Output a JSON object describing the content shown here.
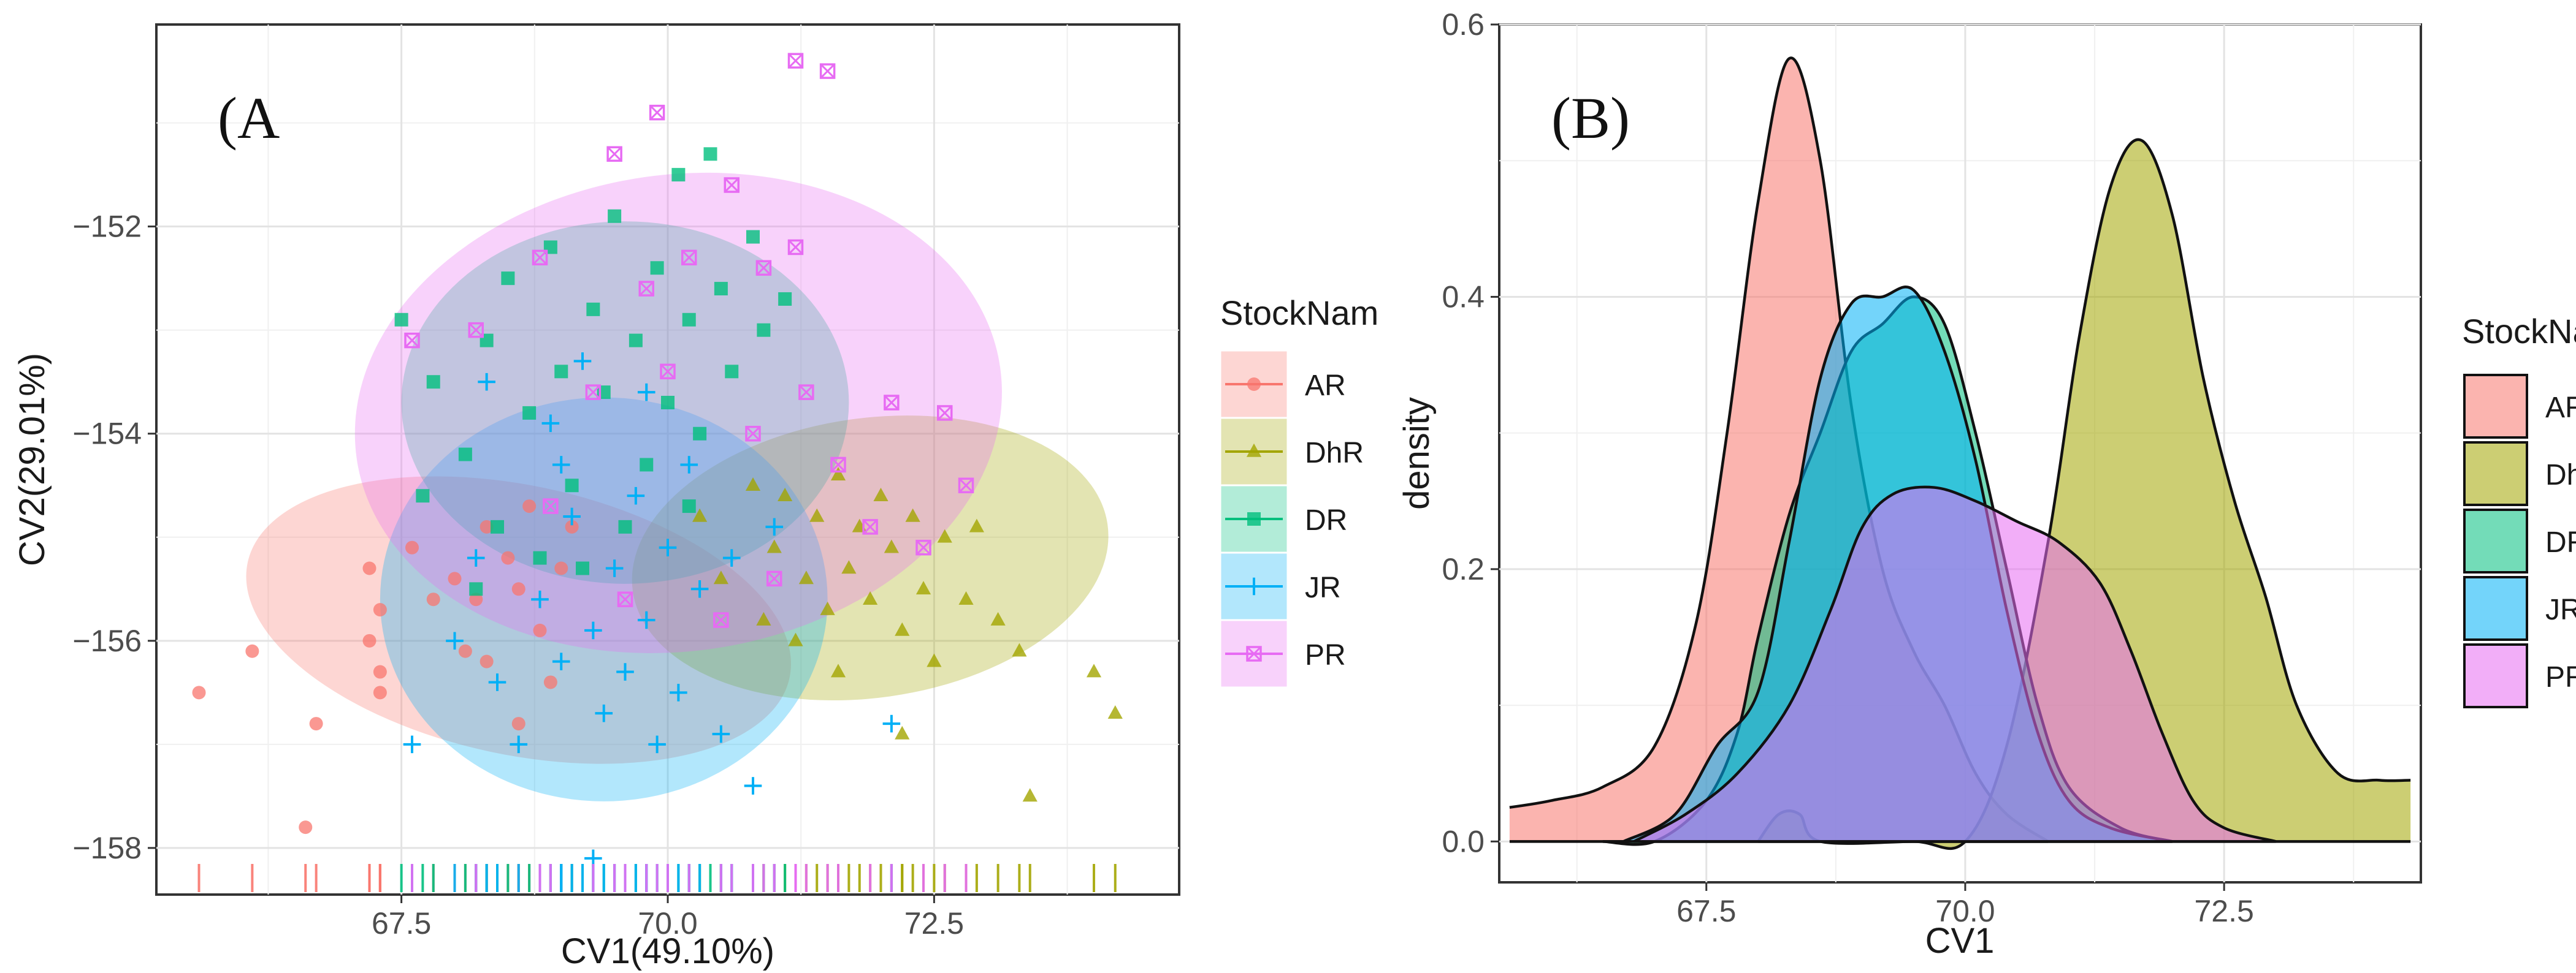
{
  "chart_data": [
    {
      "type": "scatter",
      "panel_label": "(A",
      "xlabel": "CV1(49.10%)",
      "ylabel": "CV2(29.01%)",
      "xlim": [
        65.2,
        74.8
      ],
      "ylim": [
        -158.45,
        -150.05
      ],
      "xticks": [
        67.5,
        70.0,
        72.5
      ],
      "xtick_labels": [
        "67.5",
        "70.0",
        "72.5"
      ],
      "yticks": [
        -158,
        -156,
        -154,
        -152
      ],
      "ytick_labels": [
        "−158",
        "−156",
        "−154",
        "−152"
      ],
      "grid": true,
      "legend_title": "StockNam",
      "legend_position": "right",
      "series": [
        {
          "name": "AR",
          "color": "#F8766D",
          "marker": "circle",
          "ellipse": {
            "cx": 68.6,
            "cy": -155.8,
            "rx": 2.6,
            "ry": 1.3,
            "angle": 12
          },
          "points": [
            [
              65.6,
              -156.5
            ],
            [
              66.1,
              -156.1
            ],
            [
              66.7,
              -156.8
            ],
            [
              66.6,
              -157.8
            ],
            [
              67.2,
              -155.3
            ],
            [
              67.3,
              -155.7
            ],
            [
              67.2,
              -156.0
            ],
            [
              67.3,
              -156.3
            ],
            [
              67.3,
              -156.5
            ],
            [
              67.6,
              -155.1
            ],
            [
              67.8,
              -155.6
            ],
            [
              68.0,
              -155.4
            ],
            [
              68.1,
              -156.1
            ],
            [
              68.2,
              -155.6
            ],
            [
              68.3,
              -156.2
            ],
            [
              68.5,
              -155.2
            ],
            [
              68.6,
              -155.5
            ],
            [
              68.8,
              -155.9
            ],
            [
              68.9,
              -156.4
            ],
            [
              69.0,
              -155.3
            ],
            [
              68.3,
              -154.9
            ],
            [
              68.7,
              -154.7
            ],
            [
              69.1,
              -154.9
            ],
            [
              68.6,
              -156.8
            ]
          ]
        },
        {
          "name": "DhR",
          "color": "#A3A500",
          "marker": "triangle",
          "ellipse": {
            "cx": 71.9,
            "cy": -155.2,
            "rx": 2.25,
            "ry": 1.35,
            "angle": -8
          },
          "points": [
            [
              70.3,
              -154.8
            ],
            [
              70.5,
              -155.4
            ],
            [
              70.8,
              -154.5
            ],
            [
              70.9,
              -155.8
            ],
            [
              71.0,
              -155.1
            ],
            [
              71.1,
              -154.6
            ],
            [
              71.2,
              -156.0
            ],
            [
              71.3,
              -155.4
            ],
            [
              71.4,
              -154.8
            ],
            [
              71.5,
              -155.7
            ],
            [
              71.6,
              -154.4
            ],
            [
              71.7,
              -155.3
            ],
            [
              71.8,
              -154.9
            ],
            [
              71.9,
              -155.6
            ],
            [
              72.0,
              -154.6
            ],
            [
              72.1,
              -155.1
            ],
            [
              72.2,
              -155.9
            ],
            [
              72.3,
              -154.8
            ],
            [
              72.4,
              -155.5
            ],
            [
              72.5,
              -156.2
            ],
            [
              72.6,
              -155.0
            ],
            [
              72.8,
              -155.6
            ],
            [
              72.9,
              -154.9
            ],
            [
              73.1,
              -155.8
            ],
            [
              73.3,
              -156.1
            ],
            [
              73.4,
              -157.5
            ],
            [
              72.2,
              -156.9
            ],
            [
              74.0,
              -156.3
            ],
            [
              74.2,
              -156.7
            ],
            [
              71.6,
              -156.3
            ]
          ]
        },
        {
          "name": "DR",
          "color": "#00BF7D",
          "marker": "square",
          "ellipse": {
            "cx": 69.6,
            "cy": -153.7,
            "rx": 2.1,
            "ry": 1.75,
            "angle": 0
          },
          "points": [
            [
              67.5,
              -152.9
            ],
            [
              67.8,
              -153.5
            ],
            [
              68.1,
              -154.2
            ],
            [
              68.3,
              -153.1
            ],
            [
              68.5,
              -152.5
            ],
            [
              68.7,
              -153.8
            ],
            [
              68.9,
              -152.2
            ],
            [
              69.0,
              -153.4
            ],
            [
              69.1,
              -154.5
            ],
            [
              69.3,
              -152.8
            ],
            [
              69.4,
              -153.6
            ],
            [
              69.5,
              -151.9
            ],
            [
              69.7,
              -153.1
            ],
            [
              69.8,
              -154.3
            ],
            [
              69.9,
              -152.4
            ],
            [
              70.0,
              -153.7
            ],
            [
              70.1,
              -151.5
            ],
            [
              70.2,
              -152.9
            ],
            [
              70.3,
              -154.0
            ],
            [
              70.4,
              -151.3
            ],
            [
              70.5,
              -152.6
            ],
            [
              70.6,
              -153.4
            ],
            [
              70.8,
              -152.1
            ],
            [
              70.9,
              -153.0
            ],
            [
              71.1,
              -152.7
            ],
            [
              68.4,
              -154.9
            ],
            [
              68.8,
              -155.2
            ],
            [
              69.6,
              -154.9
            ],
            [
              69.2,
              -155.3
            ],
            [
              68.2,
              -155.5
            ],
            [
              67.7,
              -154.6
            ],
            [
              70.2,
              -154.7
            ]
          ]
        },
        {
          "name": "JR",
          "color": "#00B0F6",
          "marker": "plus",
          "ellipse": {
            "cx": 69.4,
            "cy": -155.6,
            "rx": 2.1,
            "ry": 1.95,
            "angle": 0
          },
          "points": [
            [
              67.6,
              -157.0
            ],
            [
              68.0,
              -156.0
            ],
            [
              68.2,
              -155.2
            ],
            [
              68.4,
              -156.4
            ],
            [
              68.6,
              -157.0
            ],
            [
              68.8,
              -155.6
            ],
            [
              69.0,
              -156.2
            ],
            [
              69.1,
              -154.8
            ],
            [
              69.3,
              -155.9
            ],
            [
              69.4,
              -156.7
            ],
            [
              69.5,
              -155.3
            ],
            [
              69.6,
              -156.3
            ],
            [
              69.7,
              -154.6
            ],
            [
              69.8,
              -155.8
            ],
            [
              69.9,
              -157.0
            ],
            [
              70.0,
              -155.1
            ],
            [
              70.1,
              -156.5
            ],
            [
              70.2,
              -154.3
            ],
            [
              70.3,
              -155.5
            ],
            [
              70.5,
              -156.9
            ],
            [
              70.6,
              -155.2
            ],
            [
              70.8,
              -157.4
            ],
            [
              71.0,
              -154.9
            ],
            [
              69.3,
              -158.1
            ],
            [
              72.1,
              -156.8
            ],
            [
              69.2,
              -153.3
            ],
            [
              68.9,
              -153.9
            ],
            [
              69.0,
              -154.3
            ],
            [
              68.3,
              -153.5
            ],
            [
              69.8,
              -153.6
            ]
          ]
        },
        {
          "name": "PR",
          "color": "#E76BF3",
          "marker": "square-cross",
          "ellipse": {
            "cx": 70.1,
            "cy": -153.8,
            "rx": 3.05,
            "ry": 2.3,
            "angle": -8
          },
          "points": [
            [
              67.6,
              -153.1
            ],
            [
              68.2,
              -153.0
            ],
            [
              68.8,
              -152.3
            ],
            [
              69.5,
              -151.3
            ],
            [
              69.9,
              -150.9
            ],
            [
              70.6,
              -151.6
            ],
            [
              71.2,
              -150.4
            ],
            [
              71.5,
              -150.5
            ],
            [
              70.9,
              -152.4
            ],
            [
              71.2,
              -152.2
            ],
            [
              70.2,
              -152.3
            ],
            [
              69.8,
              -152.6
            ],
            [
              69.3,
              -153.6
            ],
            [
              70.0,
              -153.4
            ],
            [
              70.8,
              -154.0
            ],
            [
              71.3,
              -153.6
            ],
            [
              71.6,
              -154.3
            ],
            [
              72.1,
              -153.7
            ],
            [
              72.6,
              -153.8
            ],
            [
              72.8,
              -154.5
            ],
            [
              72.4,
              -155.1
            ],
            [
              71.0,
              -155.4
            ],
            [
              70.5,
              -155.8
            ],
            [
              69.6,
              -155.6
            ],
            [
              68.9,
              -154.7
            ],
            [
              71.9,
              -154.9
            ]
          ]
        }
      ]
    },
    {
      "type": "area",
      "subtype": "density",
      "panel_label": "(B)",
      "xlabel": "CV1",
      "ylabel": "density",
      "xlim": [
        65.5,
        74.4
      ],
      "ylim": [
        -0.03,
        0.6
      ],
      "xticks": [
        67.5,
        70.0,
        72.5
      ],
      "xtick_labels": [
        "67.5",
        "70.0",
        "72.5"
      ],
      "yticks": [
        0.0,
        0.2,
        0.4,
        0.6
      ],
      "ytick_labels": [
        "0.0",
        "0.2",
        "0.4",
        "0.6"
      ],
      "grid": true,
      "legend_title": "StockName",
      "legend_position": "right",
      "series": [
        {
          "name": "AR",
          "color": "#F8766D",
          "points": [
            [
              65.6,
              0.025
            ],
            [
              66.0,
              0.03
            ],
            [
              66.5,
              0.04
            ],
            [
              67.0,
              0.07
            ],
            [
              67.4,
              0.16
            ],
            [
              67.7,
              0.3
            ],
            [
              68.0,
              0.47
            ],
            [
              68.3,
              0.575
            ],
            [
              68.6,
              0.5
            ],
            [
              68.9,
              0.32
            ],
            [
              69.2,
              0.2
            ],
            [
              69.5,
              0.14
            ],
            [
              69.8,
              0.1
            ],
            [
              70.1,
              0.05
            ],
            [
              70.4,
              0.02
            ],
            [
              70.8,
              0.0
            ]
          ]
        },
        {
          "name": "DhR",
          "color": "#A3A500",
          "points": [
            [
              68.0,
              0.0
            ],
            [
              68.2,
              0.02
            ],
            [
              68.4,
              0.02
            ],
            [
              68.6,
              0.0
            ],
            [
              69.5,
              0.0
            ],
            [
              70.0,
              0.0
            ],
            [
              70.4,
              0.07
            ],
            [
              70.8,
              0.22
            ],
            [
              71.1,
              0.37
            ],
            [
              71.4,
              0.48
            ],
            [
              71.7,
              0.515
            ],
            [
              72.0,
              0.46
            ],
            [
              72.3,
              0.34
            ],
            [
              72.6,
              0.25
            ],
            [
              72.9,
              0.18
            ],
            [
              73.2,
              0.1
            ],
            [
              73.6,
              0.05
            ],
            [
              74.0,
              0.045
            ],
            [
              74.3,
              0.045
            ]
          ]
        },
        {
          "name": "DR",
          "color": "#00BF7D",
          "points": [
            [
              66.5,
              0.0
            ],
            [
              67.0,
              0.0
            ],
            [
              67.5,
              0.03
            ],
            [
              67.8,
              0.08
            ],
            [
              68.0,
              0.15
            ],
            [
              68.3,
              0.24
            ],
            [
              68.6,
              0.3
            ],
            [
              68.9,
              0.36
            ],
            [
              69.2,
              0.38
            ],
            [
              69.5,
              0.4
            ],
            [
              69.8,
              0.38
            ],
            [
              70.1,
              0.3
            ],
            [
              70.4,
              0.2
            ],
            [
              70.7,
              0.1
            ],
            [
              71.0,
              0.04
            ],
            [
              71.5,
              0.01
            ],
            [
              72.0,
              0.0
            ]
          ]
        },
        {
          "name": "JR",
          "color": "#00B0F6",
          "points": [
            [
              66.7,
              0.0
            ],
            [
              67.2,
              0.02
            ],
            [
              67.6,
              0.07
            ],
            [
              68.0,
              0.11
            ],
            [
              68.3,
              0.22
            ],
            [
              68.6,
              0.34
            ],
            [
              68.9,
              0.395
            ],
            [
              69.2,
              0.4
            ],
            [
              69.5,
              0.405
            ],
            [
              69.8,
              0.36
            ],
            [
              70.1,
              0.28
            ],
            [
              70.4,
              0.17
            ],
            [
              70.7,
              0.08
            ],
            [
              71.0,
              0.03
            ],
            [
              71.4,
              0.01
            ],
            [
              72.0,
              0.0
            ]
          ]
        },
        {
          "name": "PR",
          "color": "#E76BF3",
          "points": [
            [
              66.8,
              0.0
            ],
            [
              67.3,
              0.02
            ],
            [
              67.8,
              0.05
            ],
            [
              68.3,
              0.1
            ],
            [
              68.7,
              0.17
            ],
            [
              69.0,
              0.23
            ],
            [
              69.3,
              0.255
            ],
            [
              69.7,
              0.26
            ],
            [
              70.1,
              0.25
            ],
            [
              70.5,
              0.235
            ],
            [
              70.9,
              0.22
            ],
            [
              71.3,
              0.19
            ],
            [
              71.6,
              0.14
            ],
            [
              71.9,
              0.08
            ],
            [
              72.2,
              0.03
            ],
            [
              72.5,
              0.01
            ],
            [
              73.0,
              0.0
            ]
          ]
        }
      ]
    }
  ]
}
